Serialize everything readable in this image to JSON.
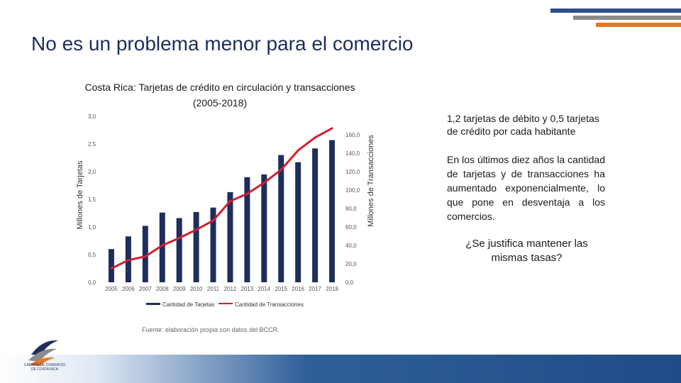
{
  "slide": {
    "title": "No es un problema menor para el comercio",
    "colors": {
      "accent_navy": "#2d4d8a",
      "accent_gray": "#8a8a8a",
      "accent_orange": "#e87722"
    }
  },
  "chart_data": {
    "type": "bar",
    "title_line1": "Costa Rica: Tarjetas de crédito en circulación y transacciones",
    "title_line2": "(2005-2018)",
    "categories": [
      "2005",
      "2006",
      "2007",
      "2008",
      "2009",
      "2010",
      "2011",
      "2012",
      "2013",
      "2014",
      "2015",
      "2016",
      "2017",
      "2018"
    ],
    "series": [
      {
        "name": "Cantidad de Tarjetas",
        "type": "bar",
        "axis": "left",
        "color": "#1f2d5c",
        "values": [
          0.6,
          0.83,
          1.02,
          1.26,
          1.16,
          1.27,
          1.35,
          1.63,
          1.9,
          1.95,
          2.3,
          2.17,
          2.42,
          2.57
        ]
      },
      {
        "name": "Cantidad de Transacciones",
        "type": "line",
        "axis": "right",
        "color": "#d0202e",
        "values": [
          15,
          24,
          28,
          40,
          48,
          57,
          67,
          88,
          96,
          108,
          122,
          143,
          157,
          167
        ]
      }
    ],
    "ylabel": "Millones de Tarjetas",
    "y2label": "Millones de Transacciones",
    "ylim": [
      0,
      3.0
    ],
    "y2lim": [
      0,
      180
    ],
    "yticks": [
      "0,0",
      "0,5",
      "1,0",
      "1,5",
      "2,0",
      "2,5",
      "3,0"
    ],
    "y2ticks": [
      "0,0",
      "20,0",
      "40,0",
      "60,0",
      "80,0",
      "100,0",
      "120,0",
      "140,0",
      "160,0"
    ],
    "legend": "bottom",
    "grid": false
  },
  "source": "Fuente: elaboración propia con datos del BCCR.",
  "notes": {
    "note1": "1,2 tarjetas de débito y 0,5 tarjetas de crédito por cada habitante",
    "note2": "En los últimos diez años la cantidad de tarjetas y de transacciones ha aumentado exponencialmente, lo que pone en desventaja a los comercios.",
    "question": "¿Se justifica mantener las mismas tasas?"
  },
  "logo": {
    "name": "camara-comercio-logo",
    "text": "CAMARA DE COMERCIO DE COSTA RICA"
  }
}
